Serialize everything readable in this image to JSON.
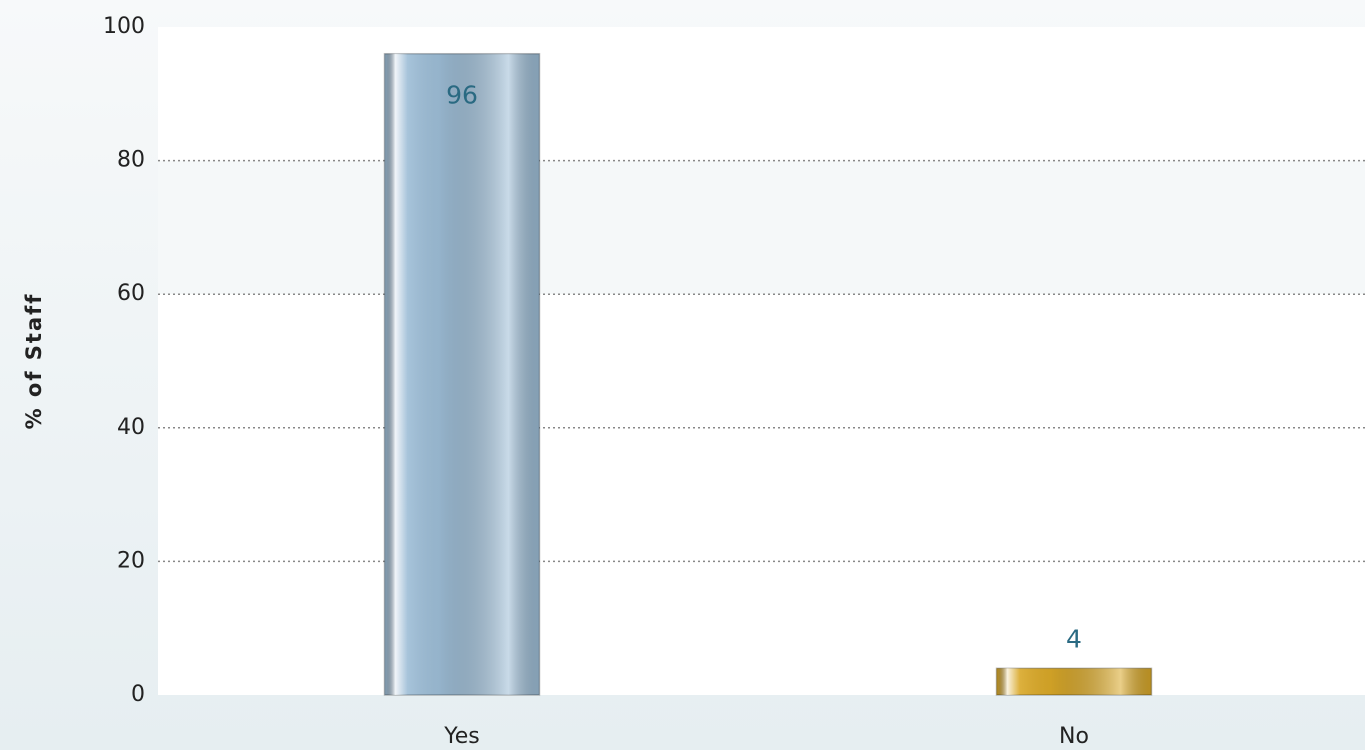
{
  "chart_data": {
    "type": "bar",
    "y_label": "% of Staff",
    "categories": [
      "Yes",
      "No"
    ],
    "values": [
      96,
      4
    ],
    "colors": [
      "#9dbdd6",
      "#d9a828"
    ],
    "ylim": [
      0,
      100
    ],
    "yticks": [
      0,
      20,
      40,
      60,
      80,
      100
    ],
    "grid": true
  }
}
